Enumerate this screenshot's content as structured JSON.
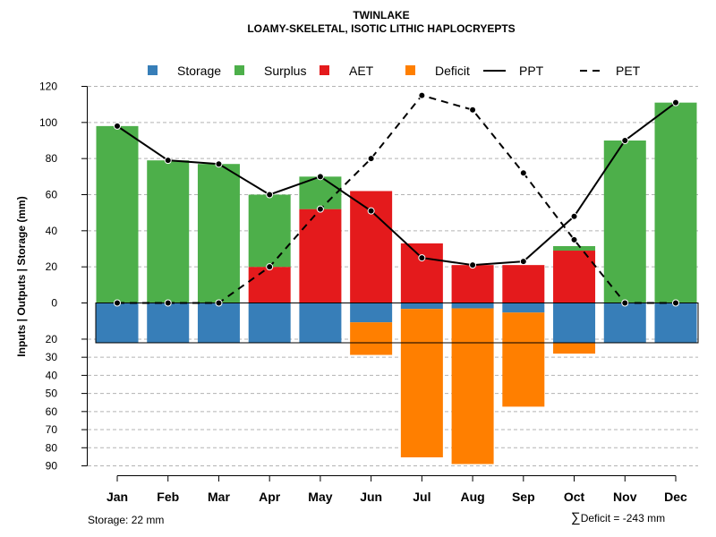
{
  "chart_data": {
    "type": "bar",
    "title": "TWINLAKE",
    "subtitle": "LOAMY-SKELETAL, ISOTIC LITHIC HAPLOCRYEPTS",
    "ylabel": "Inputs | Outputs | Storage    (mm)",
    "categories": [
      "Jan",
      "Feb",
      "Mar",
      "Apr",
      "May",
      "Jun",
      "Jul",
      "Aug",
      "Sep",
      "Oct",
      "Nov",
      "Dec"
    ],
    "upper_ticks": [
      "0",
      "20",
      "40",
      "60",
      "80",
      "100",
      "120"
    ],
    "lower_ticks": [
      "20",
      "30",
      "40",
      "50",
      "60",
      "70",
      "80",
      "90"
    ],
    "ylim_upper": [
      0,
      120
    ],
    "ylim_lower": [
      0,
      90
    ],
    "storage_capacity": 22,
    "legend": [
      {
        "key": "storage",
        "label": "Storage",
        "kind": "box",
        "color": "#377EB8"
      },
      {
        "key": "surplus",
        "label": "Surplus",
        "kind": "box",
        "color": "#4DAF4A"
      },
      {
        "key": "aet",
        "label": "AET",
        "kind": "box",
        "color": "#E41A1C"
      },
      {
        "key": "deficit",
        "label": "Deficit",
        "kind": "box",
        "color": "#FF7F00"
      },
      {
        "key": "ppt",
        "label": "PPT",
        "kind": "solid",
        "color": "#000000"
      },
      {
        "key": "pet",
        "label": "PET",
        "kind": "dashed",
        "color": "#000000"
      }
    ],
    "series": [
      {
        "name": "AET",
        "values": [
          0,
          0,
          0,
          20,
          52,
          62,
          33,
          21,
          21,
          29,
          0,
          0
        ]
      },
      {
        "name": "Surplus",
        "values": [
          98,
          79,
          77,
          40,
          18,
          0,
          0,
          0,
          0,
          2.5,
          90,
          111
        ]
      },
      {
        "name": "Storage",
        "values": [
          22,
          22,
          22,
          22,
          22,
          10.7,
          3.3,
          3,
          5.3,
          22,
          22,
          22
        ]
      },
      {
        "name": "Deficit",
        "values": [
          0,
          0,
          0,
          0,
          0,
          18,
          82,
          86,
          52,
          6,
          0,
          0
        ]
      },
      {
        "name": "PPT",
        "values": [
          98,
          79,
          77,
          60,
          70,
          51,
          25,
          21,
          23,
          48,
          90,
          111
        ]
      },
      {
        "name": "PET",
        "values": [
          0,
          0,
          0,
          20,
          52,
          80,
          115,
          107,
          72,
          35,
          0,
          0
        ]
      }
    ]
  },
  "footer": {
    "storage_text": "Storage: 22 mm",
    "deficit_symbol": "∑",
    "deficit_text": "Deficit = -243 mm"
  }
}
